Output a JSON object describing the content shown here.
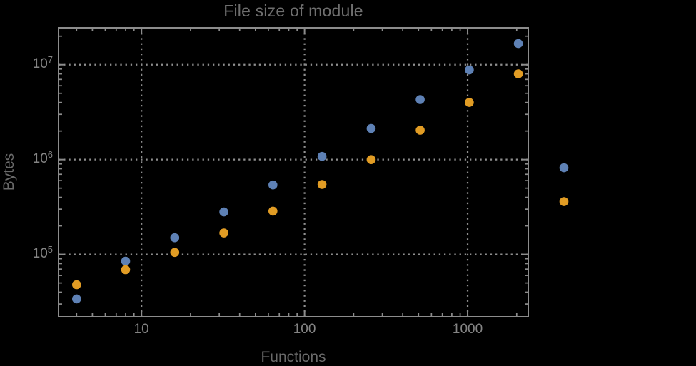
{
  "chart_data": {
    "type": "scatter",
    "title": "File size of module",
    "xlabel": "Functions",
    "ylabel": "Bytes",
    "x_scale": "log",
    "y_scale": "log",
    "x_range": [
      3.1,
      2355
    ],
    "y_range": [
      22000,
      24500000
    ],
    "grid": "dotted lines at powers of ten",
    "legend_position": "none",
    "x": [
      4,
      8,
      16,
      32,
      64,
      128,
      256,
      512,
      1024,
      2048,
      3900
    ],
    "series": [
      {
        "name": "blue-series",
        "color": "#5E81B5",
        "values": [
          34000,
          85000,
          150000,
          280000,
          540000,
          1080000,
          2130000,
          4300000,
          8800000,
          16700000,
          820000
        ]
      },
      {
        "name": "orange-series",
        "color": "#E19C24",
        "values": [
          48000,
          69000,
          105000,
          168000,
          286000,
          547000,
          1000000,
          2040000,
          4000000,
          8000000,
          360000
        ]
      }
    ],
    "x_ticks": [
      {
        "label": "10",
        "value": 10
      },
      {
        "label": "100",
        "value": 100
      },
      {
        "label": "1000",
        "value": 1000
      }
    ],
    "y_ticks": [
      {
        "label": "10",
        "exponent": "5",
        "value": 100000
      },
      {
        "label": "10",
        "exponent": "6",
        "value": 1000000
      },
      {
        "label": "10",
        "exponent": "7",
        "value": 10000000
      }
    ]
  },
  "colors": {
    "background": "#000000",
    "frame": "#8c8c8c",
    "grid": "#8f8f8f",
    "tick_label": "#848484",
    "title": "#6f6f6f",
    "axis_label": "#6a6a6a"
  }
}
